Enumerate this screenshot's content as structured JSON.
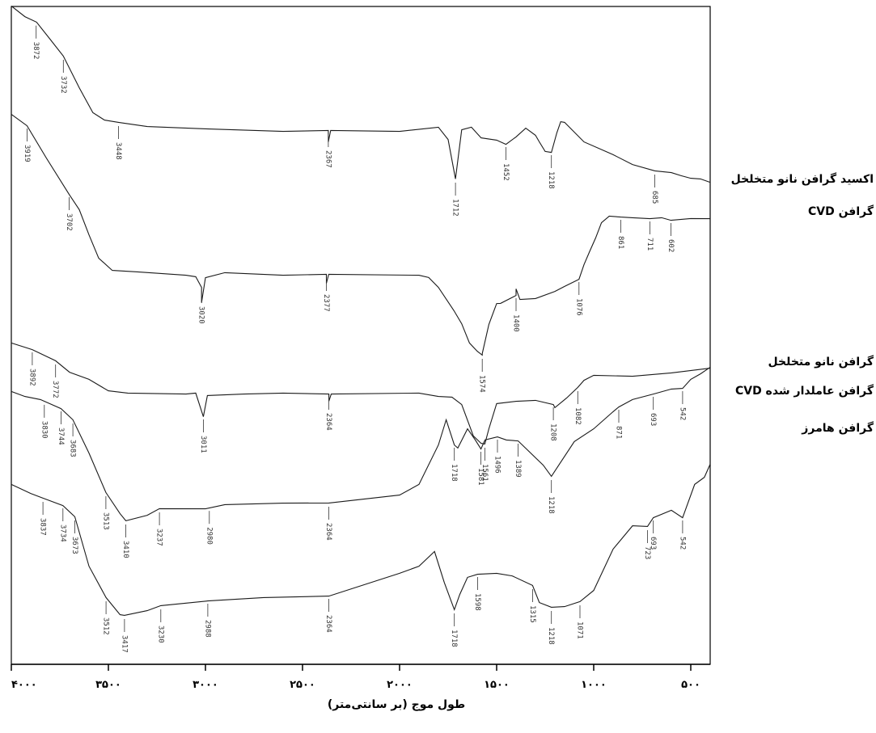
{
  "chart_data": {
    "type": "line",
    "xlabel": "طول موج (بر سانتی‌متر)",
    "ylabel": "",
    "title": "",
    "xlim": [
      4000,
      400
    ],
    "x_reversed": true,
    "x_ticks": [
      4000,
      3500,
      3000,
      2500,
      2000,
      1500,
      1000,
      500
    ],
    "x_tick_labels": [
      "۴۰۰۰",
      "۳۵۰۰",
      "۳۰۰۰",
      "۲۵۰۰",
      "۲۰۰۰",
      "۱۵۰۰",
      "۱۰۰۰",
      "۵۰۰"
    ],
    "grid": false,
    "legend_position": "right",
    "series": [
      {
        "name": "اکسید گرافن نانو متخلخل",
        "points": [
          [
            4000,
            8
          ],
          [
            3930,
            20
          ],
          [
            3870,
            28
          ],
          [
            3800,
            48
          ],
          [
            3732,
            70
          ],
          [
            3650,
            108
          ],
          [
            3580,
            140
          ],
          [
            3520,
            148
          ],
          [
            3448,
            152
          ],
          [
            3300,
            156
          ],
          [
            3000,
            160
          ],
          [
            2600,
            162
          ],
          [
            2367,
            162
          ],
          [
            2367,
            175
          ],
          [
            2355,
            162
          ],
          [
            2000,
            162
          ],
          [
            1800,
            158
          ],
          [
            1750,
            172
          ],
          [
            1712,
            222
          ],
          [
            1680,
            160
          ],
          [
            1630,
            158
          ],
          [
            1580,
            170
          ],
          [
            1500,
            174
          ],
          [
            1452,
            178
          ],
          [
            1400,
            170
          ],
          [
            1350,
            158
          ],
          [
            1300,
            168
          ],
          [
            1280,
            175
          ],
          [
            1250,
            188
          ],
          [
            1218,
            188
          ],
          [
            1190,
            165
          ],
          [
            1170,
            150
          ],
          [
            1150,
            152
          ],
          [
            1050,
            175
          ],
          [
            900,
            192
          ],
          [
            800,
            203
          ],
          [
            685,
            212
          ],
          [
            600,
            213
          ],
          [
            550,
            218
          ],
          [
            500,
            220
          ],
          [
            450,
            222
          ],
          [
            400,
            225
          ]
        ],
        "peak_labels": [
          3872,
          3732,
          3448,
          2367,
          1712,
          1452,
          1218,
          685
        ]
      },
      {
        "name": "گرافن CVD",
        "points": [
          [
            4000,
            142
          ],
          [
            3919,
            155
          ],
          [
            3820,
            196
          ],
          [
            3702,
            240
          ],
          [
            3650,
            260
          ],
          [
            3600,
            290
          ],
          [
            3550,
            320
          ],
          [
            3480,
            334
          ],
          [
            3350,
            337
          ],
          [
            3100,
            340
          ],
          [
            3050,
            343
          ],
          [
            3020,
            355
          ],
          [
            3020,
            375
          ],
          [
            3000,
            343
          ],
          [
            2900,
            338
          ],
          [
            2600,
            340
          ],
          [
            2377,
            340
          ],
          [
            2377,
            350
          ],
          [
            2365,
            340
          ],
          [
            1900,
            340
          ],
          [
            1850,
            344
          ],
          [
            1800,
            355
          ],
          [
            1720,
            385
          ],
          [
            1680,
            400
          ],
          [
            1640,
            425
          ],
          [
            1600,
            434
          ],
          [
            1574,
            440
          ],
          [
            1574,
            437
          ],
          [
            1540,
            402
          ],
          [
            1500,
            375
          ],
          [
            1480,
            376
          ],
          [
            1400,
            365
          ],
          [
            1400,
            358
          ],
          [
            1380,
            370
          ],
          [
            1300,
            370
          ],
          [
            1200,
            360
          ],
          [
            1150,
            355
          ],
          [
            1076,
            345
          ],
          [
            1050,
            328
          ],
          [
            1020,
            310
          ],
          [
            990,
            295
          ],
          [
            960,
            275
          ],
          [
            920,
            268
          ],
          [
            861,
            268
          ],
          [
            800,
            270
          ],
          [
            711,
            270
          ],
          [
            650,
            270
          ],
          [
            602,
            272
          ],
          [
            500,
            271
          ],
          [
            400,
            270
          ]
        ],
        "peak_labels": [
          3919,
          3702,
          3020,
          2377,
          1574,
          1400,
          1076,
          861,
          711,
          602
        ]
      },
      {
        "name": "گرافن نانو متخلخل",
        "points": [
          [
            4000,
            425
          ],
          [
            3892,
            432
          ],
          [
            3772,
            447
          ],
          [
            3700,
            460
          ],
          [
            3600,
            470
          ],
          [
            3500,
            483
          ],
          [
            3400,
            487
          ],
          [
            3100,
            487
          ],
          [
            3050,
            487
          ],
          [
            3011,
            515
          ],
          [
            2990,
            490
          ],
          [
            2800,
            487
          ],
          [
            2600,
            487
          ],
          [
            2364,
            487
          ],
          [
            2364,
            497
          ],
          [
            2352,
            487
          ],
          [
            1900,
            487
          ],
          [
            1800,
            490
          ],
          [
            1730,
            492
          ],
          [
            1680,
            500
          ],
          [
            1620,
            540
          ],
          [
            1580,
            548
          ],
          [
            1561,
            550
          ],
          [
            1540,
            530
          ],
          [
            1500,
            500
          ],
          [
            1400,
            496
          ],
          [
            1300,
            496
          ],
          [
            1208,
            500
          ],
          [
            1200,
            505
          ],
          [
            1140,
            492
          ],
          [
            1082,
            480
          ],
          [
            1050,
            470
          ],
          [
            1000,
            465
          ],
          [
            800,
            465
          ],
          [
            600,
            462
          ],
          [
            400,
            455
          ]
        ],
        "peak_labels": [
          3892,
          3772,
          3011,
          2364,
          1561,
          1208,
          1082
        ]
      },
      {
        "name": "گرافن عاملدار شده CVD",
        "points": [
          [
            4000,
            485
          ],
          [
            3930,
            490
          ],
          [
            3850,
            495
          ],
          [
            3744,
            505
          ],
          [
            3683,
            520
          ],
          [
            3600,
            560
          ],
          [
            3513,
            610
          ],
          [
            3440,
            635
          ],
          [
            3410,
            645
          ],
          [
            3300,
            637
          ],
          [
            3237,
            630
          ],
          [
            3000,
            629
          ],
          [
            2900,
            625
          ],
          [
            2600,
            622
          ],
          [
            2364,
            623
          ],
          [
            2000,
            612
          ],
          [
            1900,
            600
          ],
          [
            1800,
            550
          ],
          [
            1760,
            520
          ],
          [
            1718,
            550
          ],
          [
            1700,
            555
          ],
          [
            1650,
            530
          ],
          [
            1610,
            545
          ],
          [
            1581,
            555
          ],
          [
            1560,
            545
          ],
          [
            1496,
            540
          ],
          [
            1450,
            545
          ],
          [
            1389,
            545
          ],
          [
            1330,
            560
          ],
          [
            1260,
            575
          ],
          [
            1218,
            590
          ],
          [
            1180,
            575
          ],
          [
            1100,
            547
          ],
          [
            1000,
            530
          ],
          [
            900,
            510
          ],
          [
            871,
            503
          ],
          [
            800,
            495
          ],
          [
            693,
            487
          ],
          [
            600,
            482
          ],
          [
            542,
            480
          ],
          [
            500,
            470
          ],
          [
            450,
            462
          ],
          [
            400,
            455
          ]
        ],
        "peak_labels": [
          3830,
          3744,
          3683,
          3513,
          3410,
          3237,
          2980,
          2364,
          1718,
          1581,
          1496,
          1389,
          1218,
          871,
          693,
          542
        ]
      },
      {
        "name": "گرافن هامرز",
        "points": [
          [
            4000,
            600
          ],
          [
            3900,
            610
          ],
          [
            3837,
            617
          ],
          [
            3734,
            625
          ],
          [
            3673,
            640
          ],
          [
            3600,
            700
          ],
          [
            3512,
            740
          ],
          [
            3440,
            760
          ],
          [
            3417,
            762
          ],
          [
            3300,
            755
          ],
          [
            3230,
            750
          ],
          [
            2988,
            743
          ],
          [
            2700,
            740
          ],
          [
            2364,
            737
          ],
          [
            2000,
            710
          ],
          [
            1900,
            700
          ],
          [
            1820,
            683
          ],
          [
            1770,
            720
          ],
          [
            1718,
            755
          ],
          [
            1690,
            735
          ],
          [
            1650,
            715
          ],
          [
            1598,
            710
          ],
          [
            1500,
            710
          ],
          [
            1420,
            712
          ],
          [
            1315,
            725
          ],
          [
            1280,
            745
          ],
          [
            1218,
            752
          ],
          [
            1150,
            750
          ],
          [
            1071,
            745
          ],
          [
            1000,
            730
          ],
          [
            900,
            680
          ],
          [
            800,
            650
          ],
          [
            723,
            652
          ],
          [
            693,
            640
          ],
          [
            600,
            632
          ],
          [
            542,
            640
          ],
          [
            480,
            600
          ],
          [
            430,
            590
          ],
          [
            400,
            575
          ]
        ],
        "peak_labels": [
          3837,
          3734,
          3673,
          3512,
          3417,
          3230,
          2988,
          2364,
          1718,
          1598,
          1315,
          1218,
          1071,
          723,
          693,
          542
        ]
      }
    ]
  },
  "peak_label_text": {
    "s0": [
      "3872",
      "3732",
      "3448",
      "2367",
      "1712",
      "1452",
      "1218",
      "685"
    ],
    "s1": [
      "3919",
      "3702",
      "3020",
      "2377",
      "1574",
      "1400",
      "1076",
      "861",
      "711",
      "602"
    ],
    "s2": [
      "3892",
      "3772",
      "3011",
      "2364",
      "1561",
      "1208",
      "1082"
    ],
    "s3": [
      "3830",
      "3744",
      "3683",
      "3513",
      "3410",
      "3237",
      "2980",
      "2364",
      "1718",
      "1581",
      "1496",
      "1389",
      "1218",
      "871",
      "693",
      "542"
    ],
    "s4": [
      "3837",
      "3734",
      "3673",
      "3512",
      "3417",
      "3230",
      "2988",
      "2364",
      "1718",
      "1598",
      "1315",
      "1218",
      "1071",
      "723",
      "693",
      "542"
    ]
  }
}
